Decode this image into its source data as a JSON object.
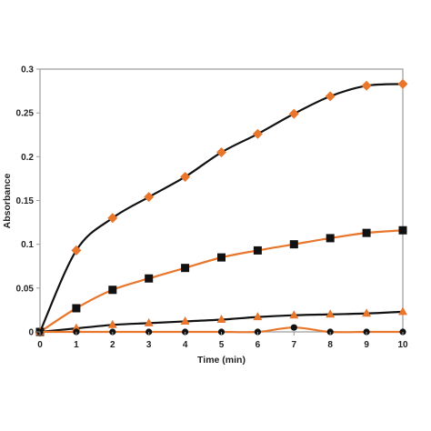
{
  "chart_data": {
    "type": "line",
    "xlabel": "Time (min)",
    "ylabel": "Absorbance",
    "xlim": [
      0,
      10
    ],
    "ylim": [
      0,
      0.3
    ],
    "x_ticks": [
      "0",
      "1",
      "2",
      "3",
      "4",
      "5",
      "6",
      "7",
      "8",
      "9",
      "10"
    ],
    "y_ticks": [
      "0",
      "0.05",
      "0.1",
      "0.15",
      "0.2",
      "0.25",
      "0.3"
    ],
    "grid": false,
    "x": [
      0,
      1,
      2,
      3,
      4,
      5,
      6,
      7,
      8,
      9,
      10
    ],
    "series": [
      {
        "marker": "diamond",
        "marker_color": "#e8762b",
        "line_color": "#111111",
        "values": [
          0,
          0.093,
          0.13,
          0.154,
          0.177,
          0.205,
          0.226,
          0.249,
          0.269,
          0.281,
          0.283
        ]
      },
      {
        "marker": "square",
        "marker_color": "#111111",
        "line_color": "#e8762b",
        "values": [
          0,
          0.027,
          0.048,
          0.061,
          0.073,
          0.085,
          0.093,
          0.1,
          0.107,
          0.113,
          0.116
        ]
      },
      {
        "marker": "triangle",
        "marker_color": "#e8762b",
        "line_color": "#111111",
        "values": [
          0,
          0.004,
          0.008,
          0.01,
          0.012,
          0.014,
          0.017,
          0.019,
          0.02,
          0.021,
          0.023
        ]
      },
      {
        "marker": "circle",
        "marker_color": "#111111",
        "line_color": "#e8762b",
        "values": [
          0,
          0,
          0,
          0,
          0,
          0,
          0,
          0.005,
          0,
          0,
          0
        ]
      }
    ]
  }
}
